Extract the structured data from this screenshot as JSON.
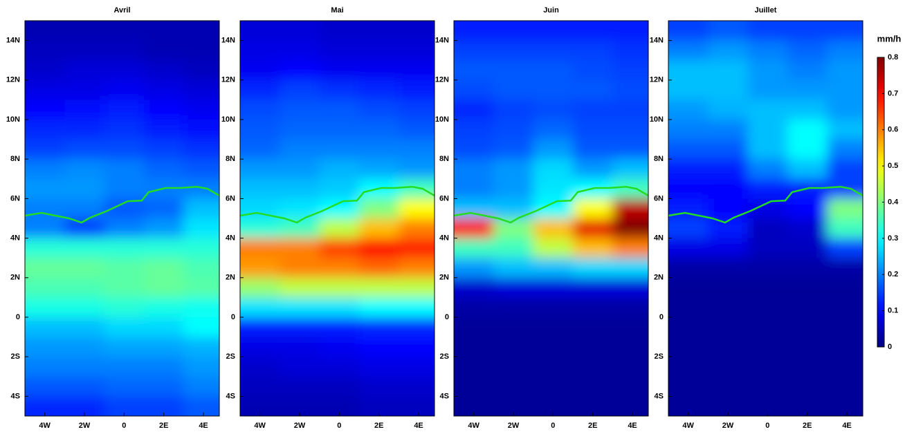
{
  "chart_data": {
    "type": "heatmap",
    "colormap": "jet",
    "xlim": [
      -5,
      4.8
    ],
    "ylim": [
      -5,
      15
    ],
    "xticks": [
      {
        "value": -4,
        "label": "4W"
      },
      {
        "value": -2,
        "label": "2W"
      },
      0,
      {
        "value": 2,
        "label": "2E"
      },
      {
        "value": 4,
        "label": "4E"
      }
    ],
    "yticks": [
      {
        "value": -4,
        "label": "4S"
      },
      {
        "value": -2,
        "label": "2S"
      },
      0,
      {
        "value": 2,
        "label": "2N"
      },
      {
        "value": 4,
        "label": "4N"
      },
      {
        "value": 6,
        "label": "6N"
      },
      {
        "value": 8,
        "label": "8N"
      },
      {
        "value": 10,
        "label": "10N"
      },
      {
        "value": 12,
        "label": "12N"
      },
      {
        "value": 14,
        "label": "14N"
      }
    ],
    "colorbar": {
      "title": "mm/h",
      "lim": [
        0,
        0.8
      ],
      "ticks": [
        0,
        0.1,
        0.2,
        0.3,
        0.4,
        0.5,
        0.6,
        0.7,
        0.8
      ]
    },
    "coastline": {
      "color": "#22dd22",
      "x": [
        -5,
        -4.16,
        -2.77,
        -2.14,
        -1.72,
        -0.85,
        0.19,
        0.89,
        1.24,
        2.1,
        2.8,
        3.67,
        4.2,
        4.8
      ],
      "y": [
        5.14,
        5.28,
        5.0,
        4.79,
        5.03,
        5.38,
        5.87,
        5.9,
        6.33,
        6.54,
        6.54,
        6.6,
        6.5,
        6.15
      ]
    },
    "panels": [
      {
        "title": "Avril",
        "x": [
          -4,
          -2,
          0,
          2,
          4
        ],
        "y": [
          14.5,
          13.5,
          12.5,
          11.5,
          10.5,
          9.5,
          8.5,
          7.5,
          6.5,
          5.5,
          4.5,
          3.5,
          2.5,
          1.5,
          0.5,
          -0.5,
          -1.5,
          -2.5,
          -3.5,
          -4.5
        ],
        "values": [
          [
            0.04,
            0.04,
            0.04,
            0.04,
            0.04
          ],
          [
            0.05,
            0.05,
            0.05,
            0.04,
            0.04
          ],
          [
            0.06,
            0.07,
            0.07,
            0.06,
            0.05
          ],
          [
            0.08,
            0.08,
            0.09,
            0.08,
            0.07
          ],
          [
            0.1,
            0.11,
            0.12,
            0.1,
            0.09
          ],
          [
            0.13,
            0.13,
            0.14,
            0.12,
            0.11
          ],
          [
            0.15,
            0.16,
            0.16,
            0.15,
            0.14
          ],
          [
            0.2,
            0.21,
            0.2,
            0.18,
            0.17
          ],
          [
            0.22,
            0.22,
            0.2,
            0.2,
            0.2
          ],
          [
            0.2,
            0.2,
            0.17,
            0.18,
            0.25
          ],
          [
            0.2,
            0.15,
            0.2,
            0.22,
            0.28
          ],
          [
            0.33,
            0.33,
            0.33,
            0.33,
            0.33
          ],
          [
            0.38,
            0.38,
            0.37,
            0.38,
            0.36
          ],
          [
            0.36,
            0.36,
            0.37,
            0.38,
            0.37
          ],
          [
            0.32,
            0.32,
            0.33,
            0.32,
            0.31
          ],
          [
            0.25,
            0.25,
            0.27,
            0.27,
            0.3
          ],
          [
            0.22,
            0.22,
            0.23,
            0.23,
            0.24
          ],
          [
            0.2,
            0.2,
            0.2,
            0.2,
            0.22
          ],
          [
            0.17,
            0.17,
            0.18,
            0.18,
            0.2
          ],
          [
            0.13,
            0.13,
            0.15,
            0.15,
            0.17
          ]
        ]
      },
      {
        "title": "Mai",
        "x": [
          -4,
          -2,
          0,
          2,
          4
        ],
        "y": [
          14.5,
          13.5,
          12.5,
          11.5,
          10.5,
          9.5,
          8.5,
          7.5,
          6.5,
          5.5,
          4.5,
          3.5,
          2.5,
          1.5,
          0.5,
          -0.5,
          -1.5,
          -2.5,
          -3.5,
          -4.5
        ],
        "values": [
          [
            0.07,
            0.07,
            0.06,
            0.06,
            0.06
          ],
          [
            0.08,
            0.08,
            0.07,
            0.07,
            0.07
          ],
          [
            0.09,
            0.1,
            0.09,
            0.09,
            0.09
          ],
          [
            0.13,
            0.15,
            0.14,
            0.13,
            0.12
          ],
          [
            0.16,
            0.17,
            0.17,
            0.16,
            0.15
          ],
          [
            0.17,
            0.18,
            0.18,
            0.18,
            0.17
          ],
          [
            0.18,
            0.2,
            0.2,
            0.2,
            0.2
          ],
          [
            0.22,
            0.22,
            0.24,
            0.23,
            0.22
          ],
          [
            0.25,
            0.25,
            0.26,
            0.3,
            0.35
          ],
          [
            0.27,
            0.28,
            0.3,
            0.4,
            0.5
          ],
          [
            0.33,
            0.35,
            0.45,
            0.55,
            0.6
          ],
          [
            0.6,
            0.6,
            0.65,
            0.7,
            0.68
          ],
          [
            0.58,
            0.6,
            0.6,
            0.62,
            0.6
          ],
          [
            0.42,
            0.45,
            0.45,
            0.45,
            0.45
          ],
          [
            0.28,
            0.28,
            0.28,
            0.3,
            0.3
          ],
          [
            0.12,
            0.12,
            0.12,
            0.13,
            0.13
          ],
          [
            0.08,
            0.08,
            0.09,
            0.1,
            0.1
          ],
          [
            0.06,
            0.07,
            0.07,
            0.08,
            0.08
          ],
          [
            0.05,
            0.05,
            0.05,
            0.06,
            0.06
          ],
          [
            0.04,
            0.04,
            0.04,
            0.05,
            0.05
          ]
        ]
      },
      {
        "title": "Juin",
        "x": [
          -4,
          -2,
          0,
          2,
          4
        ],
        "y": [
          14.5,
          13.5,
          12.5,
          11.5,
          10.5,
          9.5,
          8.5,
          7.5,
          6.5,
          5.5,
          4.5,
          3.5,
          2.5,
          1.5,
          0.5,
          -0.5,
          -1.5,
          -2.5,
          -3.5,
          -4.5
        ],
        "values": [
          [
            0.12,
            0.12,
            0.12,
            0.12,
            0.12
          ],
          [
            0.15,
            0.15,
            0.15,
            0.15,
            0.14
          ],
          [
            0.17,
            0.17,
            0.17,
            0.16,
            0.15
          ],
          [
            0.16,
            0.17,
            0.17,
            0.17,
            0.16
          ],
          [
            0.13,
            0.15,
            0.16,
            0.15,
            0.15
          ],
          [
            0.15,
            0.16,
            0.18,
            0.16,
            0.16
          ],
          [
            0.16,
            0.17,
            0.22,
            0.17,
            0.17
          ],
          [
            0.2,
            0.22,
            0.27,
            0.22,
            0.25
          ],
          [
            0.2,
            0.22,
            0.28,
            0.3,
            0.35
          ],
          [
            0.25,
            0.25,
            0.3,
            0.5,
            0.75
          ],
          [
            0.7,
            0.4,
            0.55,
            0.72,
            0.8
          ],
          [
            0.35,
            0.35,
            0.45,
            0.55,
            0.6
          ],
          [
            0.22,
            0.25,
            0.25,
            0.27,
            0.27
          ],
          [
            0.06,
            0.07,
            0.07,
            0.07,
            0.07
          ],
          [
            0.03,
            0.03,
            0.03,
            0.03,
            0.03
          ],
          [
            0.02,
            0.02,
            0.02,
            0.02,
            0.02
          ],
          [
            0.02,
            0.02,
            0.02,
            0.02,
            0.02
          ],
          [
            0.02,
            0.02,
            0.02,
            0.02,
            0.02
          ],
          [
            0.02,
            0.02,
            0.02,
            0.02,
            0.02
          ],
          [
            0.02,
            0.02,
            0.02,
            0.02,
            0.02
          ]
        ]
      },
      {
        "title": "Juillet",
        "x": [
          -4,
          -2,
          0,
          2,
          4
        ],
        "y": [
          14.5,
          13.5,
          12.5,
          11.5,
          10.5,
          9.5,
          8.5,
          7.5,
          6.5,
          5.5,
          4.5,
          3.5,
          2.5,
          1.5,
          0.5,
          -0.5,
          -1.5,
          -2.5,
          -3.5,
          -4.5
        ],
        "values": [
          [
            0.15,
            0.17,
            0.15,
            0.15,
            0.15
          ],
          [
            0.2,
            0.22,
            0.2,
            0.18,
            0.2
          ],
          [
            0.25,
            0.25,
            0.22,
            0.2,
            0.22
          ],
          [
            0.25,
            0.25,
            0.22,
            0.22,
            0.22
          ],
          [
            0.22,
            0.24,
            0.25,
            0.25,
            0.22
          ],
          [
            0.2,
            0.2,
            0.25,
            0.3,
            0.25
          ],
          [
            0.17,
            0.17,
            0.25,
            0.3,
            0.2
          ],
          [
            0.12,
            0.12,
            0.2,
            0.25,
            0.15
          ],
          [
            0.1,
            0.1,
            0.12,
            0.12,
            0.15
          ],
          [
            0.12,
            0.1,
            0.08,
            0.1,
            0.4
          ],
          [
            0.15,
            0.12,
            0.05,
            0.06,
            0.35
          ],
          [
            0.08,
            0.08,
            0.05,
            0.05,
            0.15
          ],
          [
            0.03,
            0.03,
            0.03,
            0.03,
            0.03
          ],
          [
            0.02,
            0.02,
            0.02,
            0.02,
            0.02
          ],
          [
            0.02,
            0.02,
            0.02,
            0.02,
            0.02
          ],
          [
            0.02,
            0.02,
            0.02,
            0.02,
            0.02
          ],
          [
            0.02,
            0.02,
            0.02,
            0.02,
            0.02
          ],
          [
            0.02,
            0.02,
            0.02,
            0.02,
            0.02
          ],
          [
            0.02,
            0.02,
            0.02,
            0.02,
            0.02
          ],
          [
            0.02,
            0.02,
            0.02,
            0.02,
            0.02
          ]
        ]
      }
    ]
  }
}
